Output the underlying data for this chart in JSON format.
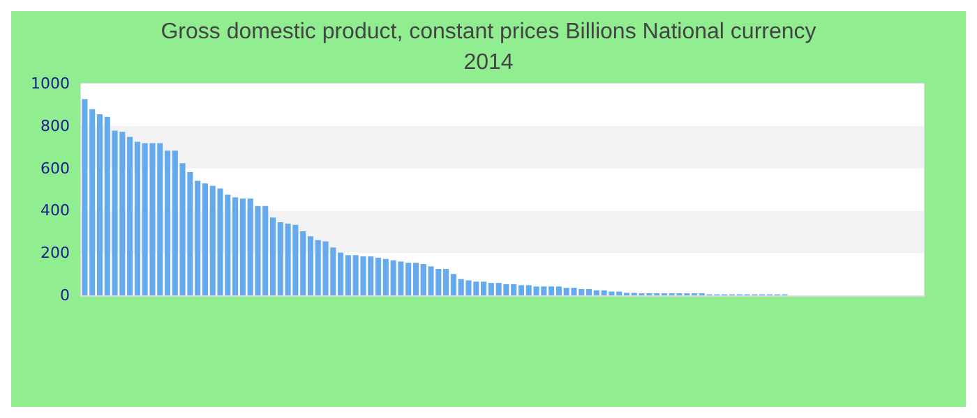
{
  "chart_data": {
    "type": "bar",
    "title": "Gross domestic product, constant prices Billions National currency",
    "subtitle": "2014",
    "categories": [
      null,
      null,
      null,
      null,
      null,
      null,
      null,
      null,
      null,
      null,
      null,
      null,
      null,
      null,
      null,
      null,
      null,
      null,
      null,
      null,
      null,
      null,
      null,
      null,
      null,
      null,
      null,
      null,
      null,
      null,
      null,
      null,
      null,
      null,
      null,
      null,
      null,
      null,
      null,
      null,
      null,
      null,
      null,
      null,
      null,
      null,
      null,
      null,
      null,
      null,
      null,
      null,
      null,
      null,
      null,
      null,
      null,
      null,
      null,
      null,
      null,
      null,
      null,
      null,
      null,
      null,
      null,
      null,
      null,
      null,
      null,
      null,
      null,
      null,
      null,
      null,
      null,
      null,
      null,
      null,
      null,
      null,
      null,
      null,
      null,
      null,
      null,
      null,
      null,
      null,
      null,
      null,
      null,
      null,
      null,
      null,
      null,
      null,
      null,
      null,
      null,
      null,
      null,
      null,
      null,
      null,
      null,
      null,
      null,
      null,
      null,
      null
    ],
    "values": [
      927,
      879,
      855,
      843,
      778,
      772,
      748,
      725,
      719,
      719,
      719,
      683,
      683,
      624,
      582,
      541,
      529,
      517,
      505,
      475,
      463,
      457,
      457,
      422,
      422,
      368,
      345,
      339,
      333,
      303,
      279,
      261,
      255,
      226,
      202,
      190,
      190,
      184,
      184,
      178,
      172,
      166,
      160,
      154,
      154,
      148,
      137,
      125,
      125,
      101,
      77,
      71,
      65,
      65,
      59,
      59,
      53,
      53,
      48,
      48,
      42,
      42,
      42,
      42,
      36,
      36,
      30,
      30,
      24,
      24,
      18,
      18,
      12,
      12,
      10,
      10,
      10,
      10,
      10,
      10,
      10,
      10,
      10,
      5,
      5,
      5,
      5,
      5,
      5,
      5,
      5,
      5,
      5,
      5,
      0,
      0,
      0,
      0,
      0,
      0,
      0,
      0,
      0,
      0,
      0,
      0,
      0,
      0,
      0,
      0,
      0,
      0
    ],
    "color": "#66aaee",
    "ylim": [
      0,
      1000
    ],
    "yticks": [
      0,
      200,
      400,
      600,
      800,
      1000
    ]
  }
}
